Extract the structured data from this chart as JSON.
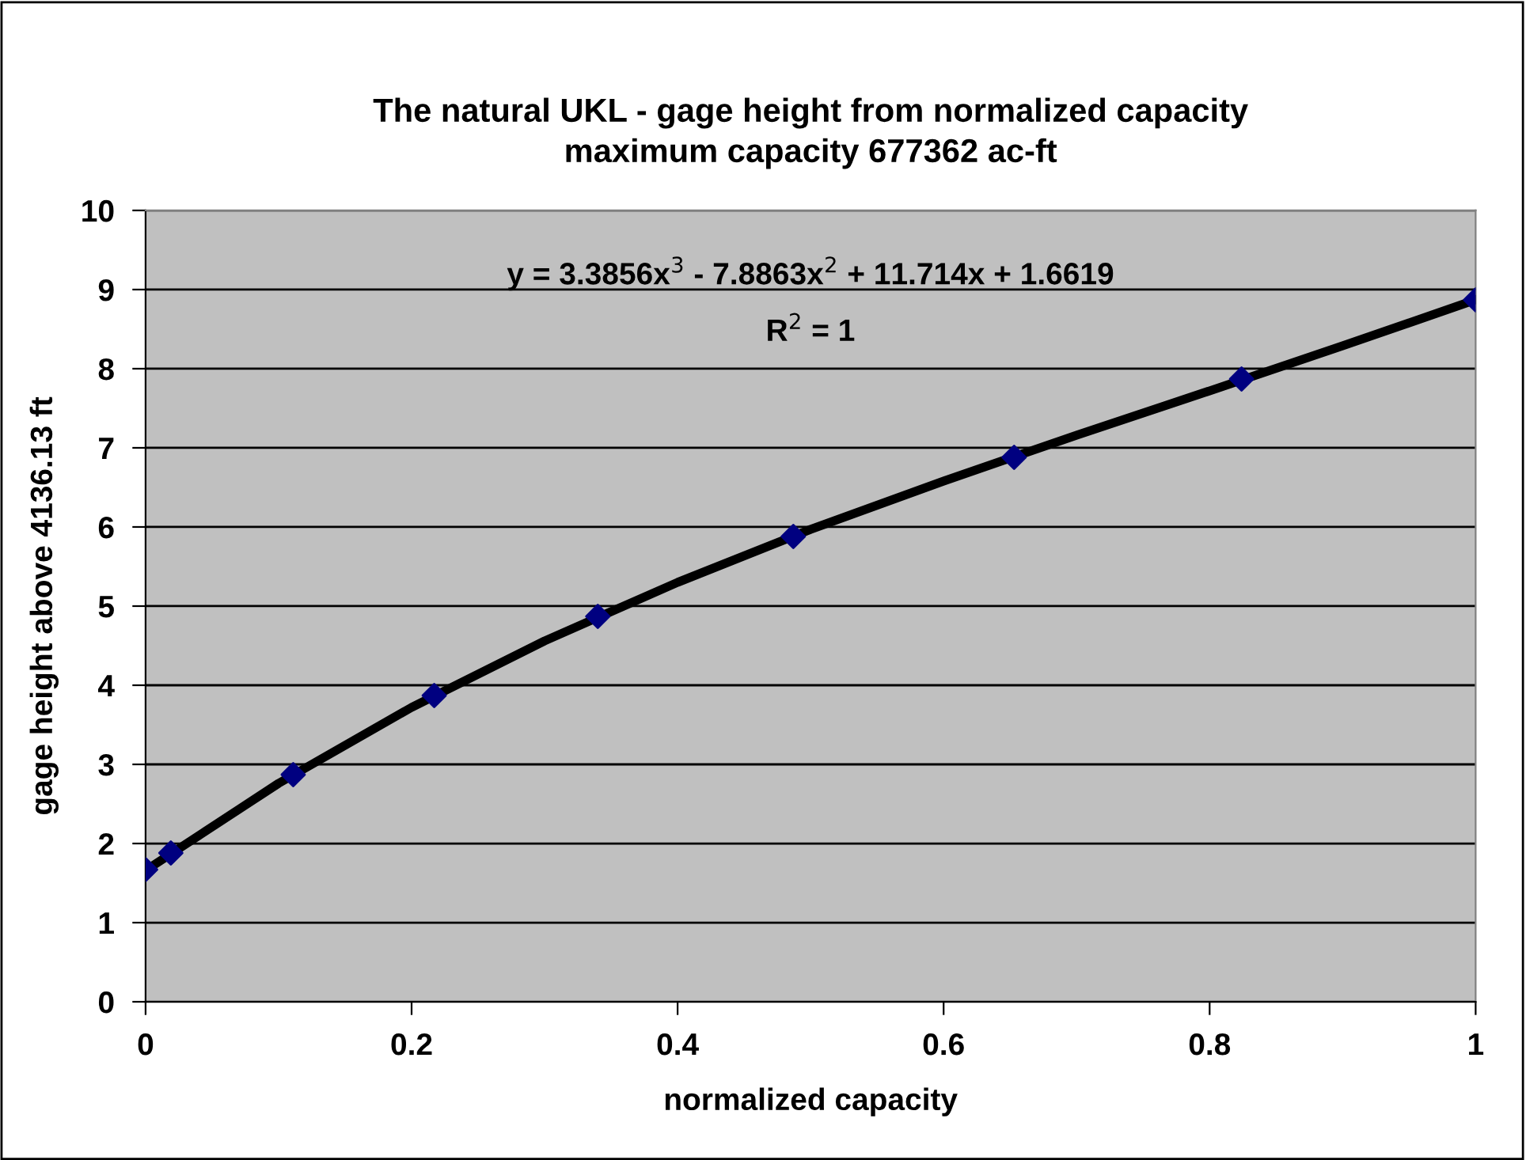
{
  "chart_data": {
    "type": "scatter",
    "title": "The natural UKL - gage height from normalized capacity\nmaximum capacity 677362 ac-ft",
    "xlabel": "normalized capacity",
    "ylabel": "gage height above 4136.13 ft",
    "series": [
      {
        "color": "#000080",
        "marker": "diamond",
        "x": [
          0,
          0.019,
          0.111,
          0.217,
          0.34,
          0.487,
          0.653,
          0.824,
          1
        ],
        "values": [
          1.67,
          1.88,
          2.87,
          3.87,
          4.87,
          5.88,
          6.88,
          7.87,
          8.87
        ]
      },
      {
        "type": "line",
        "color": "#000000",
        "marker": "none",
        "line_style": "solid",
        "x": [
          0,
          0.1,
          0.2,
          0.3,
          0.4,
          0.5,
          0.6,
          0.7,
          0.8,
          0.9,
          1
        ],
        "values": [
          1.66,
          2.76,
          3.72,
          4.56,
          5.3,
          5.97,
          6.58,
          7.16,
          7.72,
          8.29,
          8.87
        ]
      }
    ],
    "annotations": [
      "y = 3.3856x$^{3}$ - 7.8863x$^{2}$ + 11.714x + 1.6619",
      "R$^{2}$ = 1"
    ],
    "xlim": [
      0,
      1
    ],
    "xticks": [
      0,
      {
        "value": 0.2,
        "label": "0.2"
      },
      {
        "value": 0.4,
        "label": "0.4"
      },
      {
        "value": 0.6,
        "label": "0.6"
      },
      {
        "value": 0.8,
        "label": "0.8"
      },
      1
    ],
    "ylim": [
      0,
      10
    ],
    "yticks": [
      0,
      1,
      2,
      3,
      4,
      5,
      6,
      7,
      8,
      9,
      10
    ],
    "grid": "y"
  }
}
